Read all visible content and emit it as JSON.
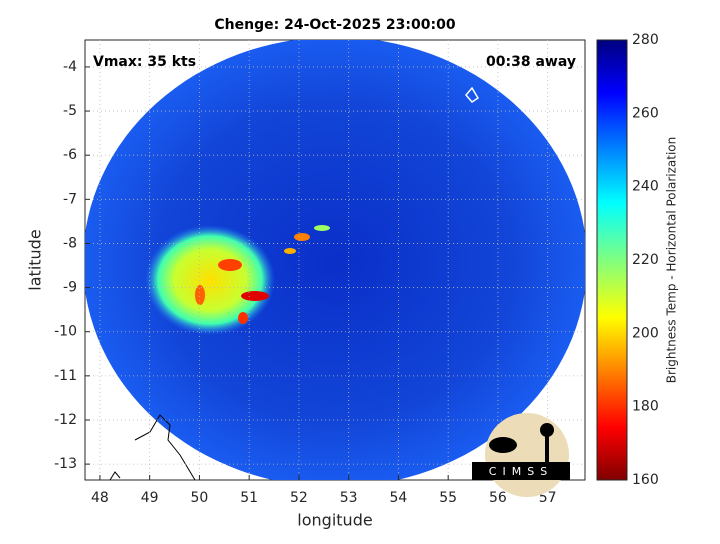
{
  "chart_data": {
    "type": "image",
    "title": "Chenge: 24-Oct-2025 23:00:00",
    "annotations": [
      "Vmax: 35 kts",
      "00:38 away"
    ],
    "xlabel": "longitude",
    "ylabel": "latitude",
    "xlim": [
      47.7,
      57.75
    ],
    "xticks": [
      48,
      49,
      50,
      51,
      52,
      53,
      54,
      55,
      56,
      57
    ],
    "ylim": [
      -13.36,
      -3.39
    ],
    "yticks": [
      -13,
      -12,
      -11,
      -10,
      -9,
      -8,
      -7,
      -6,
      -5,
      -4
    ],
    "grid": true,
    "colorbar": {
      "label": "Brightness Temp - Horizontal Polarization",
      "colormap": "jet",
      "lim": [
        160,
        280
      ],
      "ticks": [
        160,
        180,
        200,
        220,
        240,
        260,
        280
      ]
    },
    "logo": "CIMSS"
  }
}
